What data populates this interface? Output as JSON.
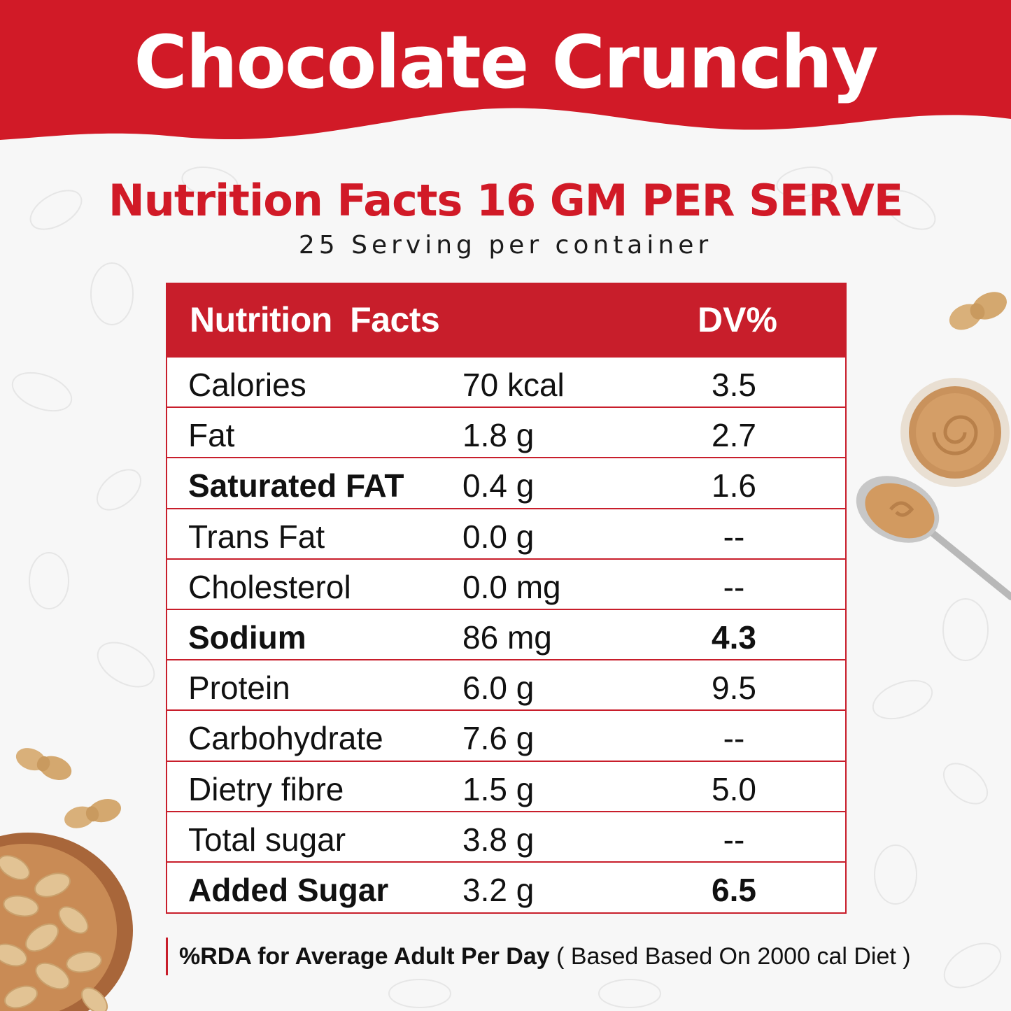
{
  "banner": {
    "title": "Chocolate Crunchy",
    "color": "#d11a27"
  },
  "heading": {
    "title": "Nutrition Facts 16 GM PER SERVE",
    "servings": "25 Serving per container"
  },
  "table": {
    "header_name": "Nutrition  Facts",
    "header_dv": "DV%",
    "accent": "#c81e2b",
    "rows": [
      {
        "name": "Calories",
        "amount": "70 kcal",
        "dv": "3.5"
      },
      {
        "name": "Fat",
        "amount": "1.8 g",
        "dv": "2.7"
      },
      {
        "name": "Saturated FAT",
        "amount": "0.4 g",
        "dv": "1.6"
      },
      {
        "name": "Trans Fat",
        "amount": "0.0 g",
        "dv": "--"
      },
      {
        "name": "Cholesterol",
        "amount": "0.0 mg",
        "dv": "--"
      },
      {
        "name": "Sodium",
        "amount": "86 mg",
        "dv": "4.3"
      },
      {
        "name": "Protein",
        "amount": "6.0 g",
        "dv": "9.5"
      },
      {
        "name": "Carbohydrate",
        "amount": "7.6 g",
        "dv": "--"
      },
      {
        "name": "Dietry fibre",
        "amount": "1.5 g",
        "dv": "5.0"
      },
      {
        "name": "Total sugar",
        "amount": "3.8 g",
        "dv": "--"
      },
      {
        "name": "Added Sugar",
        "amount": "3.2 g",
        "dv": "6.5"
      }
    ]
  },
  "footnote": {
    "bold": "%RDA for Average Adult Per Day",
    "regular": " ( Based Based On 2000  cal Diet )"
  },
  "decorations": [
    "peanut-icon",
    "peanut-butter-bowl-icon",
    "spoon-icon",
    "peanut-bowl-icon"
  ]
}
